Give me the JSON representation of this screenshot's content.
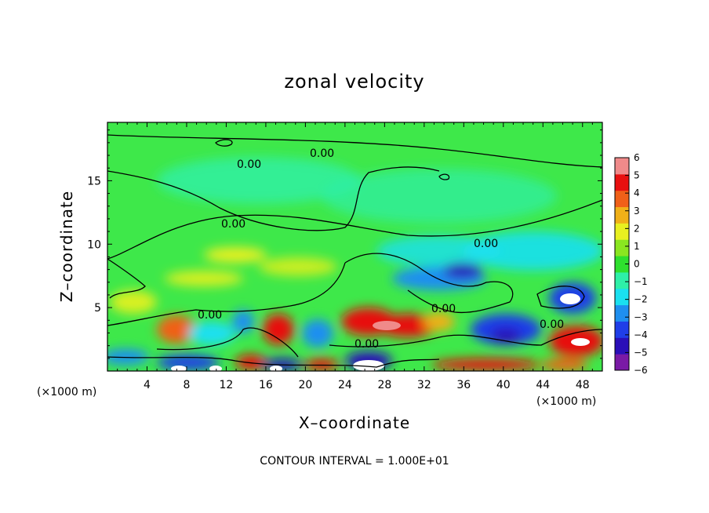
{
  "chart_data": {
    "type": "heatmap",
    "title": "zonal velocity",
    "xlabel": "X–coordinate",
    "ylabel": "Z–coordinate",
    "x_unit_label": "(×1000 m)",
    "x_unit_label_right": "(×1000 m)",
    "xlim": [
      0,
      50
    ],
    "ylim": [
      0,
      19.6
    ],
    "x_ticks": [
      "4",
      "8",
      "12",
      "16",
      "20",
      "24",
      "28",
      "32",
      "36",
      "40",
      "44",
      "48"
    ],
    "y_ticks": [
      "5",
      "10",
      "15"
    ],
    "colorbar": {
      "ticks": [
        "6",
        "5",
        "4",
        "3",
        "2",
        "1",
        "0",
        "−1",
        "−2",
        "−3",
        "−4",
        "−5",
        "−6"
      ],
      "range": [
        -6,
        6
      ],
      "colors": [
        "#7a1aa6",
        "#2a0fb8",
        "#1f3ee8",
        "#1e8ff0",
        "#1ae0f0",
        "#2ef0a8",
        "#2ee02e",
        "#8ae620",
        "#e8f020",
        "#f0b018",
        "#f06018",
        "#e81010",
        "#f08a8a"
      ]
    },
    "contour_labels": [
      "0.00",
      "0.00",
      "0.00",
      "0.00",
      "0.00",
      "0.00",
      "0.00",
      "0.00"
    ],
    "footer": "CONTOUR INTERVAL = 1.000E+01"
  }
}
